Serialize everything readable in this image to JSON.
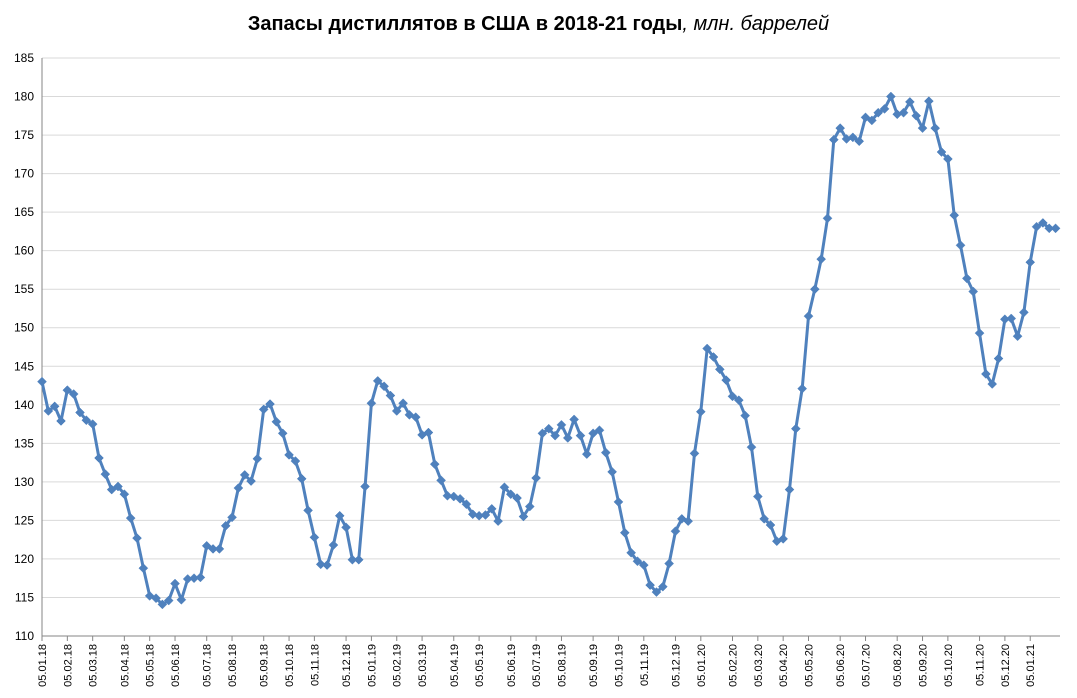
{
  "chart_data": {
    "type": "line",
    "title": "Запасы дистиллятов в США в 2018-21 годы",
    "title_unit": ", млн. баррелей",
    "ylim": [
      110,
      185
    ],
    "yticks": [
      110,
      115,
      120,
      125,
      130,
      135,
      140,
      145,
      150,
      155,
      160,
      165,
      170,
      175,
      180,
      185
    ],
    "xtick_labels": [
      "05.01.18",
      "05.02.18",
      "05.03.18",
      "05.04.18",
      "05.05.18",
      "05.06.18",
      "05.07.18",
      "05.08.18",
      "05.09.18",
      "05.10.18",
      "05.11.18",
      "05.12.18",
      "05.01.19",
      "05.02.19",
      "05.03.19",
      "05.04.19",
      "05.05.19",
      "05.06.19",
      "05.07.19",
      "05.08.19",
      "05.09.19",
      "05.10.19",
      "05.11.19",
      "05.12.19",
      "05.01.20",
      "05.02.20",
      "05.03.20",
      "05.04.20",
      "05.05.20",
      "05.06.20",
      "05.07.20",
      "05.08.20",
      "05.09.20",
      "05.10.20",
      "05.11.20",
      "05.12.20",
      "05.01.21"
    ],
    "grid": true,
    "legend": "none",
    "colors": {
      "line": "#4f81bd",
      "marker": "#4f81bd",
      "grid": "#d9d9d9",
      "axis": "#868686"
    },
    "series": [
      {
        "frequency": "weekly",
        "start": "05.01.18",
        "values": [
          143.0,
          139.2,
          139.8,
          137.9,
          141.9,
          141.4,
          139.0,
          138.0,
          137.5,
          133.1,
          131.0,
          129.0,
          129.4,
          128.4,
          125.3,
          122.7,
          118.8,
          115.2,
          114.9,
          114.1,
          114.6,
          116.8,
          114.7,
          117.4,
          117.5,
          117.6,
          121.7,
          121.3,
          121.3,
          124.3,
          125.4,
          129.2,
          130.9,
          130.1,
          133.0,
          139.4,
          140.1,
          137.8,
          136.3,
          133.5,
          132.7,
          130.4,
          126.3,
          122.8,
          119.3,
          119.2,
          121.8,
          125.6,
          124.1,
          119.9,
          119.9,
          129.4,
          140.2,
          143.1,
          142.4,
          141.2,
          139.2,
          140.2,
          138.7,
          138.4,
          136.1,
          136.4,
          132.3,
          130.2,
          128.2,
          128.1,
          127.8,
          127.1,
          125.8,
          125.6,
          125.7,
          126.5,
          124.9,
          129.3,
          128.4,
          127.9,
          125.5,
          126.8,
          130.5,
          136.3,
          136.9,
          136.0,
          137.4,
          135.7,
          138.1,
          136.0,
          133.6,
          136.3,
          136.7,
          133.8,
          131.3,
          127.4,
          123.4,
          120.8,
          119.7,
          119.2,
          116.6,
          115.7,
          116.4,
          119.4,
          123.6,
          125.2,
          124.9,
          133.7,
          139.1,
          147.3,
          146.2,
          144.6,
          143.2,
          141.1,
          140.6,
          138.6,
          134.5,
          128.1,
          125.2,
          124.4,
          122.3,
          122.6,
          129.0,
          136.9,
          142.1,
          151.5,
          155.0,
          158.9,
          164.2,
          174.4,
          175.9,
          174.5,
          174.7,
          174.2,
          177.3,
          176.9,
          177.9,
          178.4,
          180.0,
          177.7,
          177.9,
          179.3,
          177.5,
          175.9,
          179.4,
          175.9,
          172.8,
          171.9,
          164.6,
          160.7,
          156.4,
          154.7,
          149.3,
          144.0,
          142.7,
          146.0,
          151.1,
          151.2,
          148.9,
          152.0,
          158.5,
          163.1,
          163.6,
          162.9,
          162.9
        ]
      }
    ]
  }
}
